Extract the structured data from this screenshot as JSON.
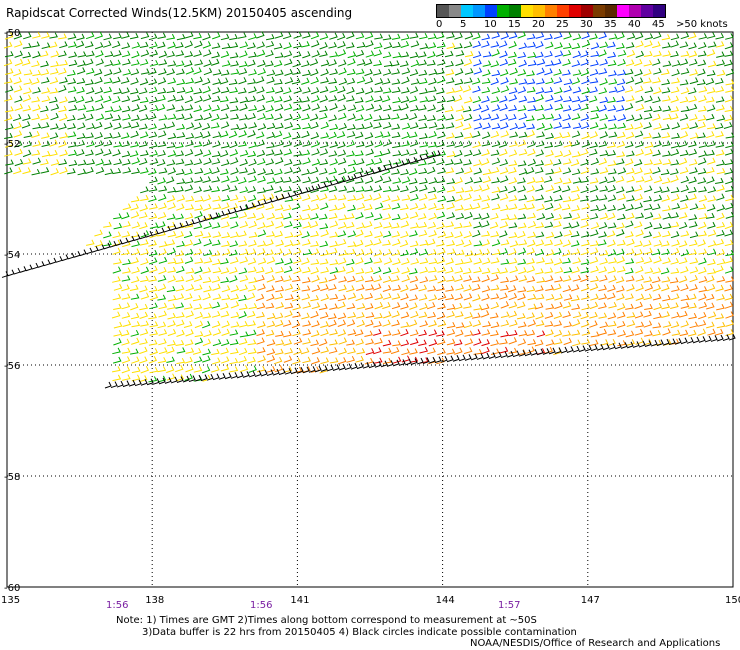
{
  "header": {
    "title": "Rapidscat Corrected Winds(12.5KM) 20150405 ascending"
  },
  "legend": {
    "colors": [
      "#555555",
      "#888888",
      "#00c8ff",
      "#0096ff",
      "#0040ff",
      "#00b000",
      "#008000",
      "#ffe000",
      "#ffbf00",
      "#ff8000",
      "#ff4000",
      "#e00000",
      "#a00000",
      "#7a3b00",
      "#5a2a00",
      "#ff00ff",
      "#b000b0",
      "#6000a0",
      "#300080"
    ],
    "labels": [
      "0",
      "5",
      "10",
      "15",
      "20",
      "25",
      "30",
      "35",
      "40",
      "45",
      ">50 knots"
    ]
  },
  "axes": {
    "x_ticks": [
      "135",
      "138",
      "141",
      "144",
      "147",
      "150"
    ],
    "y_ticks": [
      "-50",
      "-52",
      "-54",
      "-56",
      "-58",
      "-60"
    ]
  },
  "pass_times": [
    "1:56",
    "1:56",
    "1:57"
  ],
  "footer": {
    "note_line1": "Note: 1) Times are GMT 2)Times along bottom correspond to measurement at ~50S",
    "note_line2": "3)Data buffer is 22 hrs from 20150405 4) Black circles indicate possible contamination",
    "credit": "NOAA/NESDIS/Office of Research and Applications"
  }
}
